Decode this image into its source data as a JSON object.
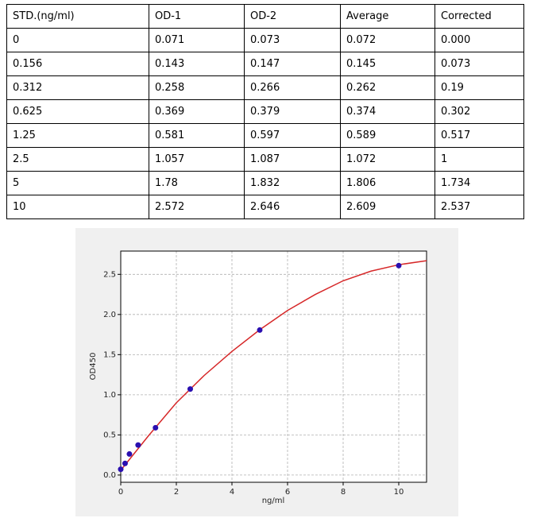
{
  "table": {
    "header": [
      "STD.(ng/ml)",
      "OD-1",
      "OD-2",
      "Average",
      "Corrected"
    ],
    "rows": [
      [
        "0",
        "0.071",
        "0.073",
        "0.072",
        "0.000"
      ],
      [
        "0.156",
        "0.143",
        "0.147",
        "0.145",
        "0.073"
      ],
      [
        "0.312",
        "0.258",
        "0.266",
        "0.262",
        "0.19"
      ],
      [
        "0.625",
        "0.369",
        "0.379",
        "0.374",
        "0.302"
      ],
      [
        "1.25",
        "0.581",
        "0.597",
        "0.589",
        "0.517"
      ],
      [
        "2.5",
        "1.057",
        "1.087",
        "1.072",
        "1"
      ],
      [
        "5",
        "1.78",
        "1.832",
        "1.806",
        "1.734"
      ],
      [
        "10",
        "2.572",
        "2.646",
        "2.609",
        "2.537"
      ]
    ]
  },
  "chart_data": {
    "type": "scatter",
    "xlabel": "ng/ml",
    "ylabel": "OD450",
    "series": [
      {
        "type": "line",
        "color": "#d62728",
        "x": [
          0,
          1,
          2,
          3,
          4,
          5,
          6,
          7,
          8,
          9,
          10,
          11
        ],
        "values": [
          0.06,
          0.49,
          0.9,
          1.24,
          1.54,
          1.81,
          2.05,
          2.25,
          2.42,
          2.54,
          2.62,
          2.67
        ]
      },
      {
        "type": "scatter",
        "color": "#2a0fb0",
        "x": [
          0,
          0.156,
          0.312,
          0.625,
          1.25,
          2.5,
          5,
          10
        ],
        "values": [
          0.072,
          0.145,
          0.262,
          0.374,
          0.589,
          1.072,
          1.806,
          2.609
        ]
      }
    ],
    "xlim": [
      0,
      11
    ],
    "ylim": [
      -0.09,
      2.79
    ],
    "xticks": [
      0,
      2,
      4,
      6,
      8,
      10
    ],
    "yticks": [
      {
        "value": 0,
        "label": "0.0"
      },
      {
        "value": 0.5,
        "label": "0.5"
      },
      {
        "value": 1,
        "label": "1.0"
      },
      {
        "value": 1.5,
        "label": "1.5"
      },
      {
        "value": 2,
        "label": "2.0"
      },
      {
        "value": 2.5,
        "label": "2.5"
      }
    ],
    "grid": true
  }
}
